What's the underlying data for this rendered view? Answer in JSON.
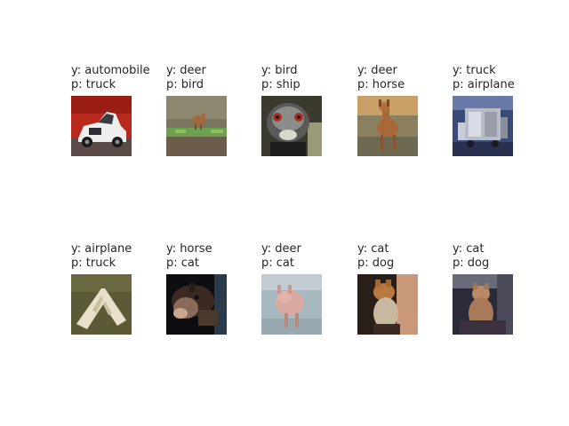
{
  "figure": {
    "samples": [
      {
        "y_label": "y: automobile",
        "p_label": "p: truck",
        "image": "car-photo"
      },
      {
        "y_label": "y: deer",
        "p_label": "p: bird",
        "image": "deer-in-grass-photo"
      },
      {
        "y_label": "y: bird",
        "p_label": "p: ship",
        "image": "ostrich-head-photo"
      },
      {
        "y_label": "y: deer",
        "p_label": "p: horse",
        "image": "brown-deer-photo"
      },
      {
        "y_label": "y: truck",
        "p_label": "p: airplane",
        "image": "tanker-truck-photo"
      },
      {
        "y_label": "y: airplane",
        "p_label": "p: truck",
        "image": "white-airplane-on-ground-photo"
      },
      {
        "y_label": "y: horse",
        "p_label": "p: cat",
        "image": "dark-horse-head-photo"
      },
      {
        "y_label": "y: deer",
        "p_label": "p: cat",
        "image": "pale-deer-photo"
      },
      {
        "y_label": "y: cat",
        "p_label": "p: dog",
        "image": "cat-close-up-photo"
      },
      {
        "y_label": "y: cat",
        "p_label": "p: dog",
        "image": "sitting-cat-photo"
      }
    ]
  }
}
